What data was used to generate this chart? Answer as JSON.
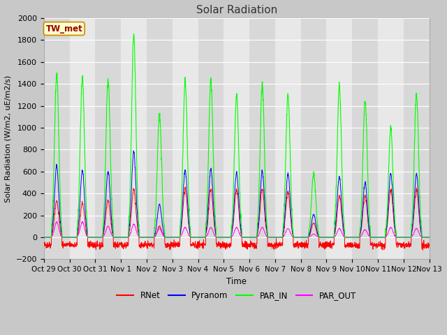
{
  "title": "Solar Radiation",
  "ylabel": "Solar Radiation (W/m2, uE/m2/s)",
  "xlabel": "Time",
  "ylim": [
    -200,
    2000
  ],
  "xtick_labels": [
    "Oct 29",
    "Oct 30",
    "Oct 31",
    "Nov 1",
    "Nov 2",
    "Nov 3",
    "Nov 4",
    "Nov 5",
    "Nov 6",
    "Nov 7",
    "Nov 8",
    "Nov 9",
    "Nov 10",
    "Nov 11",
    "Nov 12",
    "Nov 13"
  ],
  "station_label": "TW_met",
  "legend_entries": [
    "RNet",
    "Pyranom",
    "PAR_IN",
    "PAR_OUT"
  ],
  "legend_colors": [
    "#ff0000",
    "#0000ff",
    "#00ff00",
    "#ff00ff"
  ],
  "fig_bg_color": "#c8c8c8",
  "plot_bg_color": "#e8e8e8",
  "band_light": "#e8e8e8",
  "band_dark": "#d8d8d8",
  "grid_color": "#ffffff",
  "days": 15,
  "seed": 42,
  "par_in_peaks": [
    1480,
    1460,
    1440,
    1840,
    1120,
    1430,
    1430,
    1300,
    1390,
    1300,
    580,
    1370,
    1250,
    1000,
    1300
  ],
  "pyranom_peaks": [
    650,
    610,
    600,
    780,
    300,
    610,
    630,
    590,
    600,
    580,
    210,
    550,
    500,
    580,
    580
  ],
  "rnet_peaks": [
    330,
    310,
    340,
    430,
    100,
    440,
    440,
    430,
    440,
    410,
    130,
    375,
    380,
    430,
    430
  ],
  "par_out_peaks": [
    140,
    140,
    100,
    120,
    80,
    90,
    90,
    90,
    90,
    80,
    30,
    80,
    70,
    90,
    80
  ]
}
